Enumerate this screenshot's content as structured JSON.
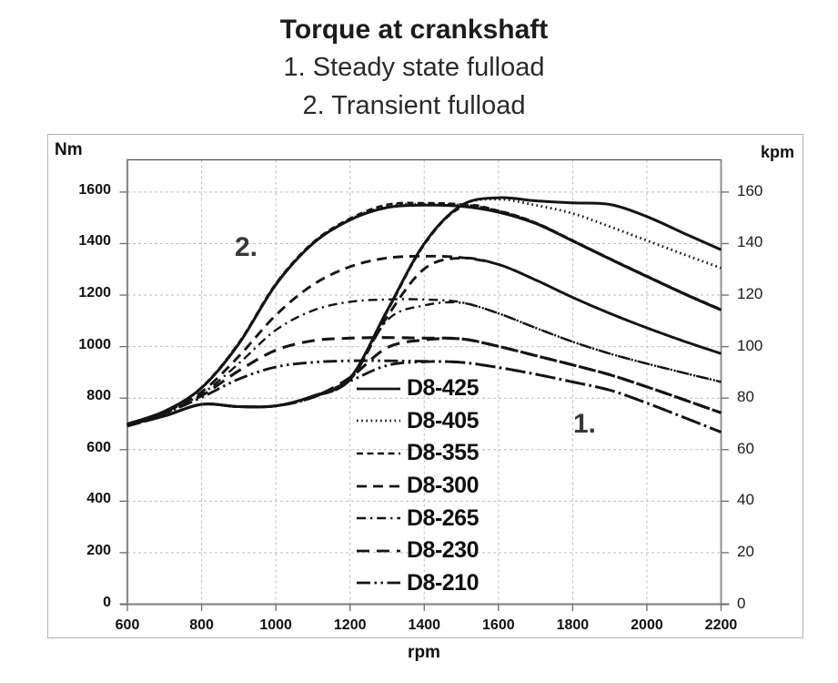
{
  "header": {
    "title": "Torque at crankshaft",
    "subtitle1": "1. Steady state fulload",
    "subtitle2": "2. Transient fulload"
  },
  "axis_units": {
    "left": "Nm",
    "right": "kpm",
    "x": "rpm"
  },
  "plot_annotations": {
    "steady_label": "1.",
    "transient_label": "2."
  },
  "colors": {
    "curve": "#141414",
    "grid": "#bdbdbd",
    "axis": "#8a8a8a",
    "border": "#4d4d4d",
    "tick": "#6b6b6b",
    "frame": "#b3b3b3"
  },
  "chart_data": {
    "type": "line",
    "title": "Torque at crankshaft",
    "subtitle_lines": [
      "1. Steady state fulload",
      "2. Transient fulload"
    ],
    "xlabel": "rpm",
    "ylabel_left": "Nm",
    "ylabel_right": "kpm",
    "x_range": [
      600,
      2200
    ],
    "y_left_range": [
      0,
      1600
    ],
    "y_right_range": [
      0,
      160
    ],
    "x_ticks": [
      600,
      800,
      1000,
      1200,
      1400,
      1600,
      1800,
      2000,
      2200
    ],
    "y_left_ticks": [
      0,
      200,
      400,
      600,
      800,
      1000,
      1200,
      1400,
      1600
    ],
    "y_right_ticks": [
      0,
      20,
      40,
      60,
      80,
      100,
      120,
      140,
      160
    ],
    "grid": "dashed both axes",
    "legend_position": "inside center",
    "x": [
      600,
      700,
      800,
      900,
      1000,
      1100,
      1200,
      1300,
      1400,
      1500,
      1600,
      1700,
      1800,
      1900,
      2000,
      2100,
      2200
    ],
    "series": [
      {
        "name": "D8-425",
        "dash": "solid",
        "steady_fulload_Nm": [
          700,
          731,
          776,
          767,
          770,
          808,
          878,
          1140,
          1400,
          1548,
          1578,
          1566,
          1558,
          1552,
          1505,
          1440,
          1376
        ],
        "transient_fulload_Nm": [
          700,
          749,
          840,
          1010,
          1240,
          1400,
          1492,
          1540,
          1549,
          1545,
          1522,
          1478,
          1410,
          1340,
          1272,
          1205,
          1142
        ]
      },
      {
        "name": "D8-405",
        "dash": "dotted",
        "steady_fulload_Nm": [
          698,
          731,
          776,
          767,
          770,
          808,
          878,
          1140,
          1400,
          1548,
          1572,
          1549,
          1517,
          1466,
          1412,
          1358,
          1305
        ],
        "transient_fulload_Nm": [
          698,
          749,
          841,
          1012,
          1242,
          1402,
          1494,
          1545,
          1553,
          1549,
          1524,
          1479,
          1411,
          1341,
          1273,
          1206,
          1143
        ]
      },
      {
        "name": "D8-355",
        "dash": "short-dash",
        "steady_fulload_Nm": [
          696,
          731,
          776,
          767,
          770,
          808,
          876,
          1136,
          1396,
          1541,
          1527,
          1481,
          1412,
          1342,
          1274,
          1207,
          1144
        ],
        "transient_fulload_Nm": [
          696,
          749,
          842,
          1014,
          1244,
          1404,
          1497,
          1551,
          1557,
          1552,
          1527,
          1481,
          1412,
          1342,
          1274,
          1207,
          1144
        ]
      },
      {
        "name": "D8-300",
        "dash": "dash",
        "steady_fulload_Nm": [
          695,
          731,
          776,
          767,
          770,
          806,
          872,
          1116,
          1302,
          1344,
          1319,
          1259,
          1191,
          1129,
          1073,
          1021,
          973
        ],
        "transient_fulload_Nm": [
          695,
          746,
          824,
          962,
          1122,
          1240,
          1310,
          1344,
          1351,
          1346,
          1319,
          1259,
          1191,
          1129,
          1073,
          1021,
          973
        ]
      },
      {
        "name": "D8-265",
        "dash": "dash-dot",
        "steady_fulload_Nm": [
          694,
          731,
          776,
          767,
          770,
          805,
          870,
          1102,
          1160,
          1170,
          1129,
          1073,
          1019,
          973,
          934,
          898,
          863
        ],
        "transient_fulload_Nm": [
          694,
          744,
          816,
          934,
          1064,
          1140,
          1174,
          1183,
          1183,
          1172,
          1129,
          1073,
          1019,
          973,
          934,
          898,
          863
        ]
      },
      {
        "name": "D8-230",
        "dash": "long-dash",
        "steady_fulload_Nm": [
          693,
          731,
          776,
          767,
          770,
          804,
          880,
          996,
          1026,
          1030,
          1001,
          965,
          929,
          891,
          844,
          794,
          743
        ],
        "transient_fulload_Nm": [
          693,
          742,
          810,
          906,
          986,
          1023,
          1033,
          1035,
          1033,
          1030,
          1001,
          965,
          929,
          891,
          844,
          794,
          743
        ]
      },
      {
        "name": "D8-210",
        "dash": "long-dash-dot-dot",
        "steady_fulload_Nm": [
          692,
          731,
          776,
          767,
          770,
          803,
          866,
          927,
          941,
          939,
          919,
          893,
          863,
          831,
          781,
          725,
          668
        ],
        "transient_fulload_Nm": [
          692,
          741,
          803,
          874,
          921,
          939,
          945,
          945,
          943,
          939,
          919,
          893,
          863,
          831,
          781,
          725,
          668
        ]
      }
    ]
  }
}
